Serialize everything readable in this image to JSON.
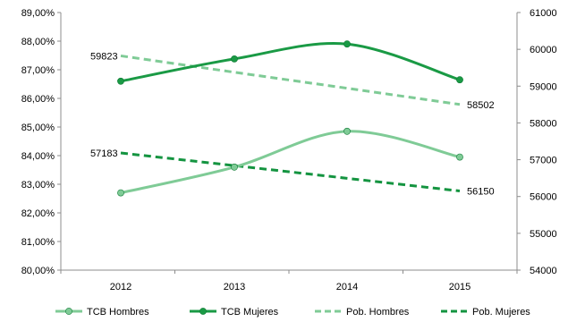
{
  "chart_data": {
    "type": "line",
    "title": "",
    "xlabel": "",
    "ylabel": "",
    "y2label": "",
    "categories": [
      "2012",
      "2013",
      "2014",
      "2015"
    ],
    "y_left": {
      "min": 80,
      "max": 89,
      "step": 1,
      "ticks": [
        "80,00%",
        "81,00%",
        "82,00%",
        "83,00%",
        "84,00%",
        "85,00%",
        "86,00%",
        "87,00%",
        "88,00%",
        "89,00%"
      ]
    },
    "y_right": {
      "min": 54000,
      "max": 61000,
      "step": 1000,
      "ticks": [
        "54000",
        "55000",
        "56000",
        "57000",
        "58000",
        "59000",
        "60000",
        "61000"
      ]
    },
    "grid": false,
    "legend_position": "bottom",
    "series": [
      {
        "name": "TCB Hombres",
        "axis": "left",
        "style": "solid",
        "markers": true,
        "color": "#7fcb96",
        "values": [
          82.7,
          83.6,
          84.85,
          83.95
        ]
      },
      {
        "name": "TCB Mujeres",
        "axis": "left",
        "style": "solid",
        "markers": true,
        "color": "#1a9a45",
        "values": [
          86.6,
          87.38,
          87.9,
          86.65
        ]
      },
      {
        "name": "Pob. Hombres",
        "axis": "right",
        "style": "dashed",
        "markers": false,
        "color": "#7fcb96",
        "values": [
          59823,
          59377,
          58943,
          58502
        ],
        "labels": [
          "59823",
          "",
          "",
          "58502"
        ]
      },
      {
        "name": "Pob. Mujeres",
        "axis": "right",
        "style": "dashed",
        "markers": false,
        "color": "#149440",
        "values": [
          57183,
          56840,
          56495,
          56150
        ],
        "labels": [
          "57183",
          "",
          "",
          "56150"
        ]
      }
    ]
  }
}
